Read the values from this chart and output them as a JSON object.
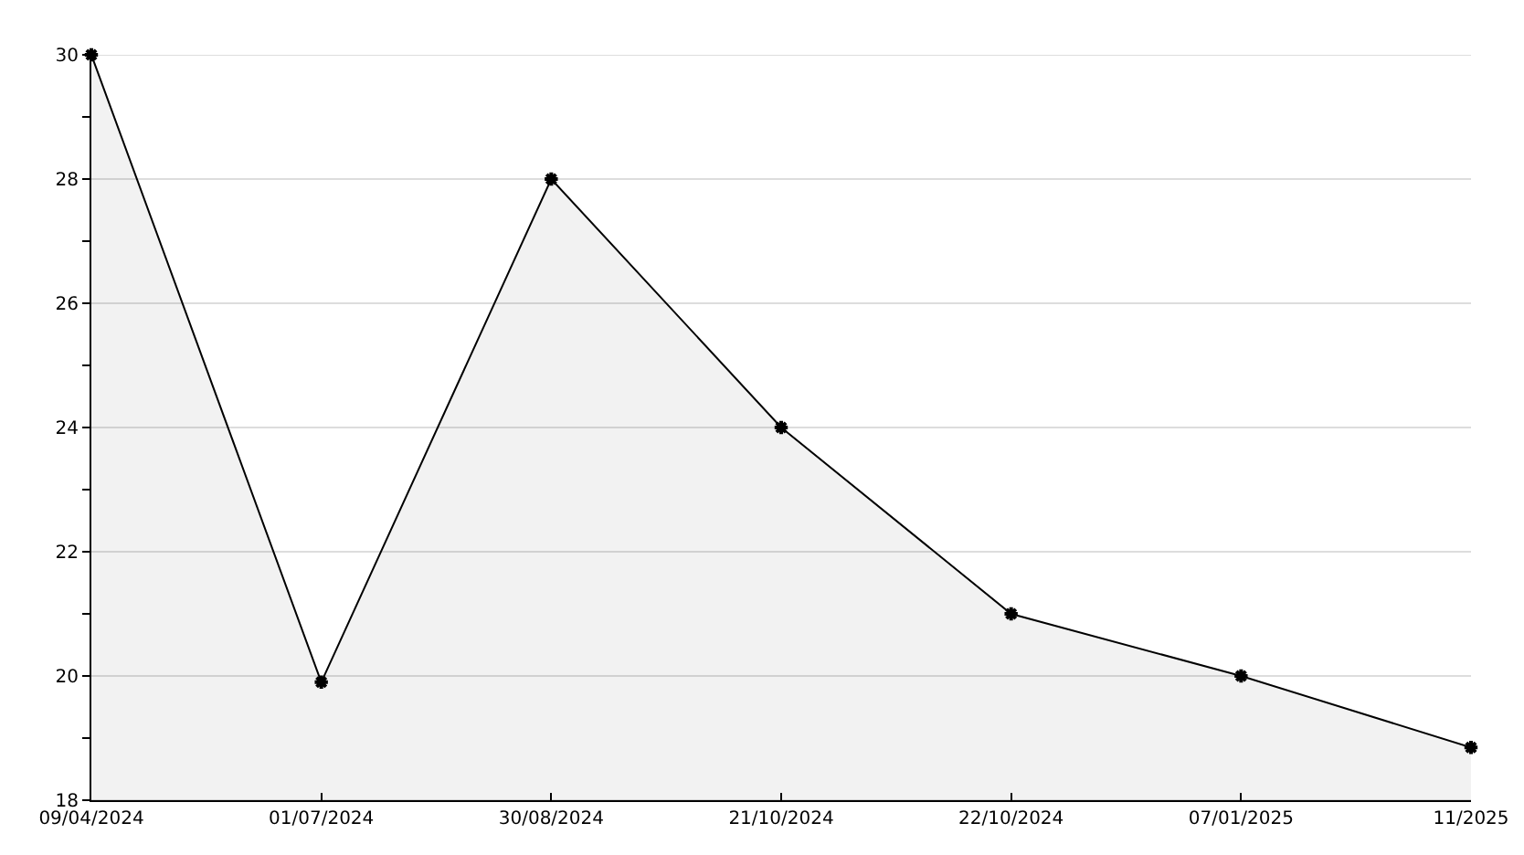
{
  "chart_data": {
    "type": "area",
    "categories": [
      "09/04/2024",
      "01/07/2024",
      "30/08/2024",
      "21/10/2024",
      "22/10/2024",
      "07/01/2025",
      "11/2025"
    ],
    "series": [
      {
        "color": "#000000",
        "values": [
          30,
          19.9,
          28,
          24,
          21,
          20,
          18.85
        ]
      }
    ],
    "ylim": [
      18,
      30
    ],
    "yticks": [
      18,
      {
        "value": 19,
        "label": null
      },
      20,
      {
        "value": 21,
        "label": null
      },
      22,
      {
        "value": 23,
        "label": null
      },
      24,
      {
        "value": 25,
        "label": null
      },
      26,
      {
        "value": 27,
        "label": null
      },
      28,
      {
        "value": 29,
        "label": null
      },
      30
    ],
    "grid": "y",
    "marker": "cross",
    "line_style": "solid"
  }
}
